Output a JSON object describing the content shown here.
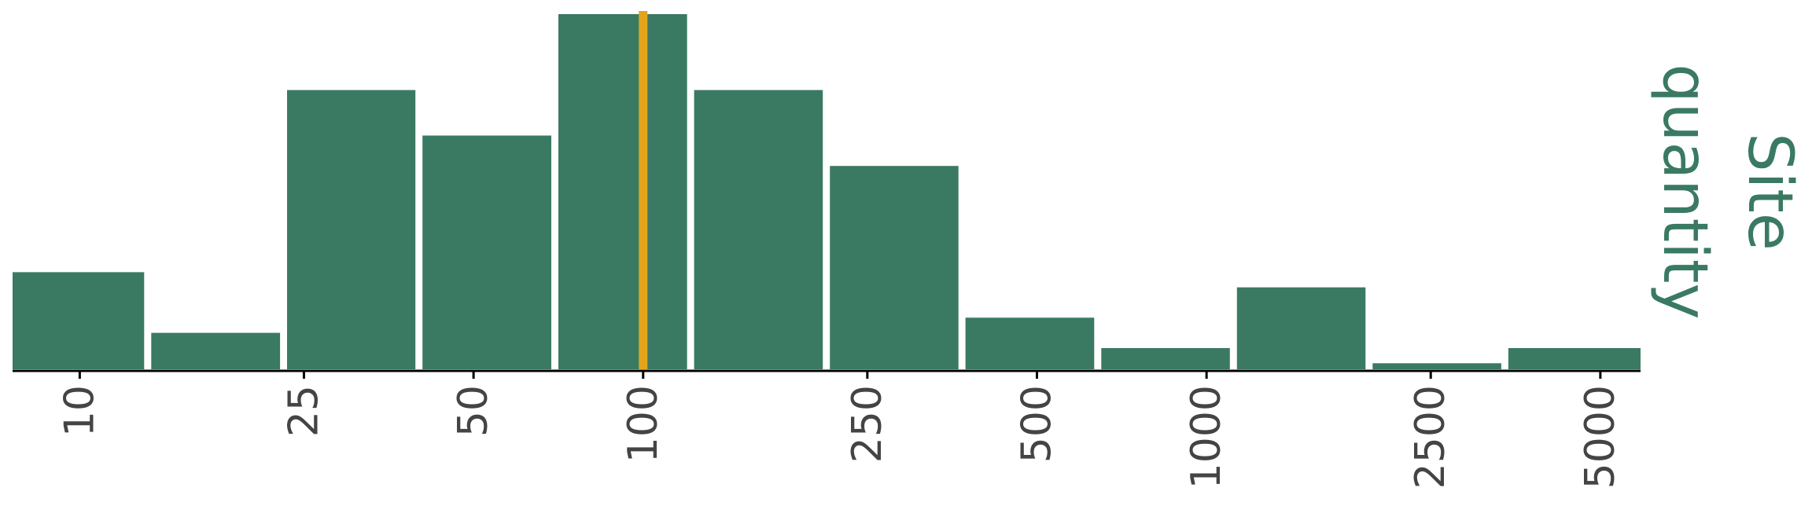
{
  "chart_data": {
    "type": "bar",
    "title": "",
    "side_title": [
      "Site",
      "quantity"
    ],
    "xlabel": "",
    "ylabel": "",
    "x_scale": "log",
    "x_ticks": [
      10,
      25,
      50,
      100,
      250,
      500,
      1000,
      2500,
      5000
    ],
    "x_tick_labels": [
      "10",
      "25",
      "50",
      "100",
      "250",
      "500",
      "1000",
      "2500",
      "5000"
    ],
    "bins": [
      {
        "x_start": 7.6,
        "x_end": 13.2,
        "count": 32
      },
      {
        "x_start": 13.2,
        "x_end": 23.0,
        "count": 12
      },
      {
        "x_start": 23.0,
        "x_end": 40.0,
        "count": 92
      },
      {
        "x_start": 40.0,
        "x_end": 69.7,
        "count": 77
      },
      {
        "x_start": 69.7,
        "x_end": 121.4,
        "count": 117
      },
      {
        "x_start": 121.4,
        "x_end": 211.4,
        "count": 92
      },
      {
        "x_start": 211.4,
        "x_end": 368.0,
        "count": 67
      },
      {
        "x_start": 368.0,
        "x_end": 641.0,
        "count": 17
      },
      {
        "x_start": 641.0,
        "x_end": 1116.0,
        "count": 7
      },
      {
        "x_start": 1116.0,
        "x_end": 1943.0,
        "count": 27
      },
      {
        "x_start": 1943.0,
        "x_end": 3384.0,
        "count": 2
      },
      {
        "x_start": 3384.0,
        "x_end": 5893.0,
        "count": 7
      }
    ],
    "ylim": [
      0,
      117
    ],
    "reference_line": {
      "x": 100,
      "color": "#e3a41c"
    },
    "bar_color": "#3a7a62",
    "grid": false,
    "y_axis_visible": false
  }
}
